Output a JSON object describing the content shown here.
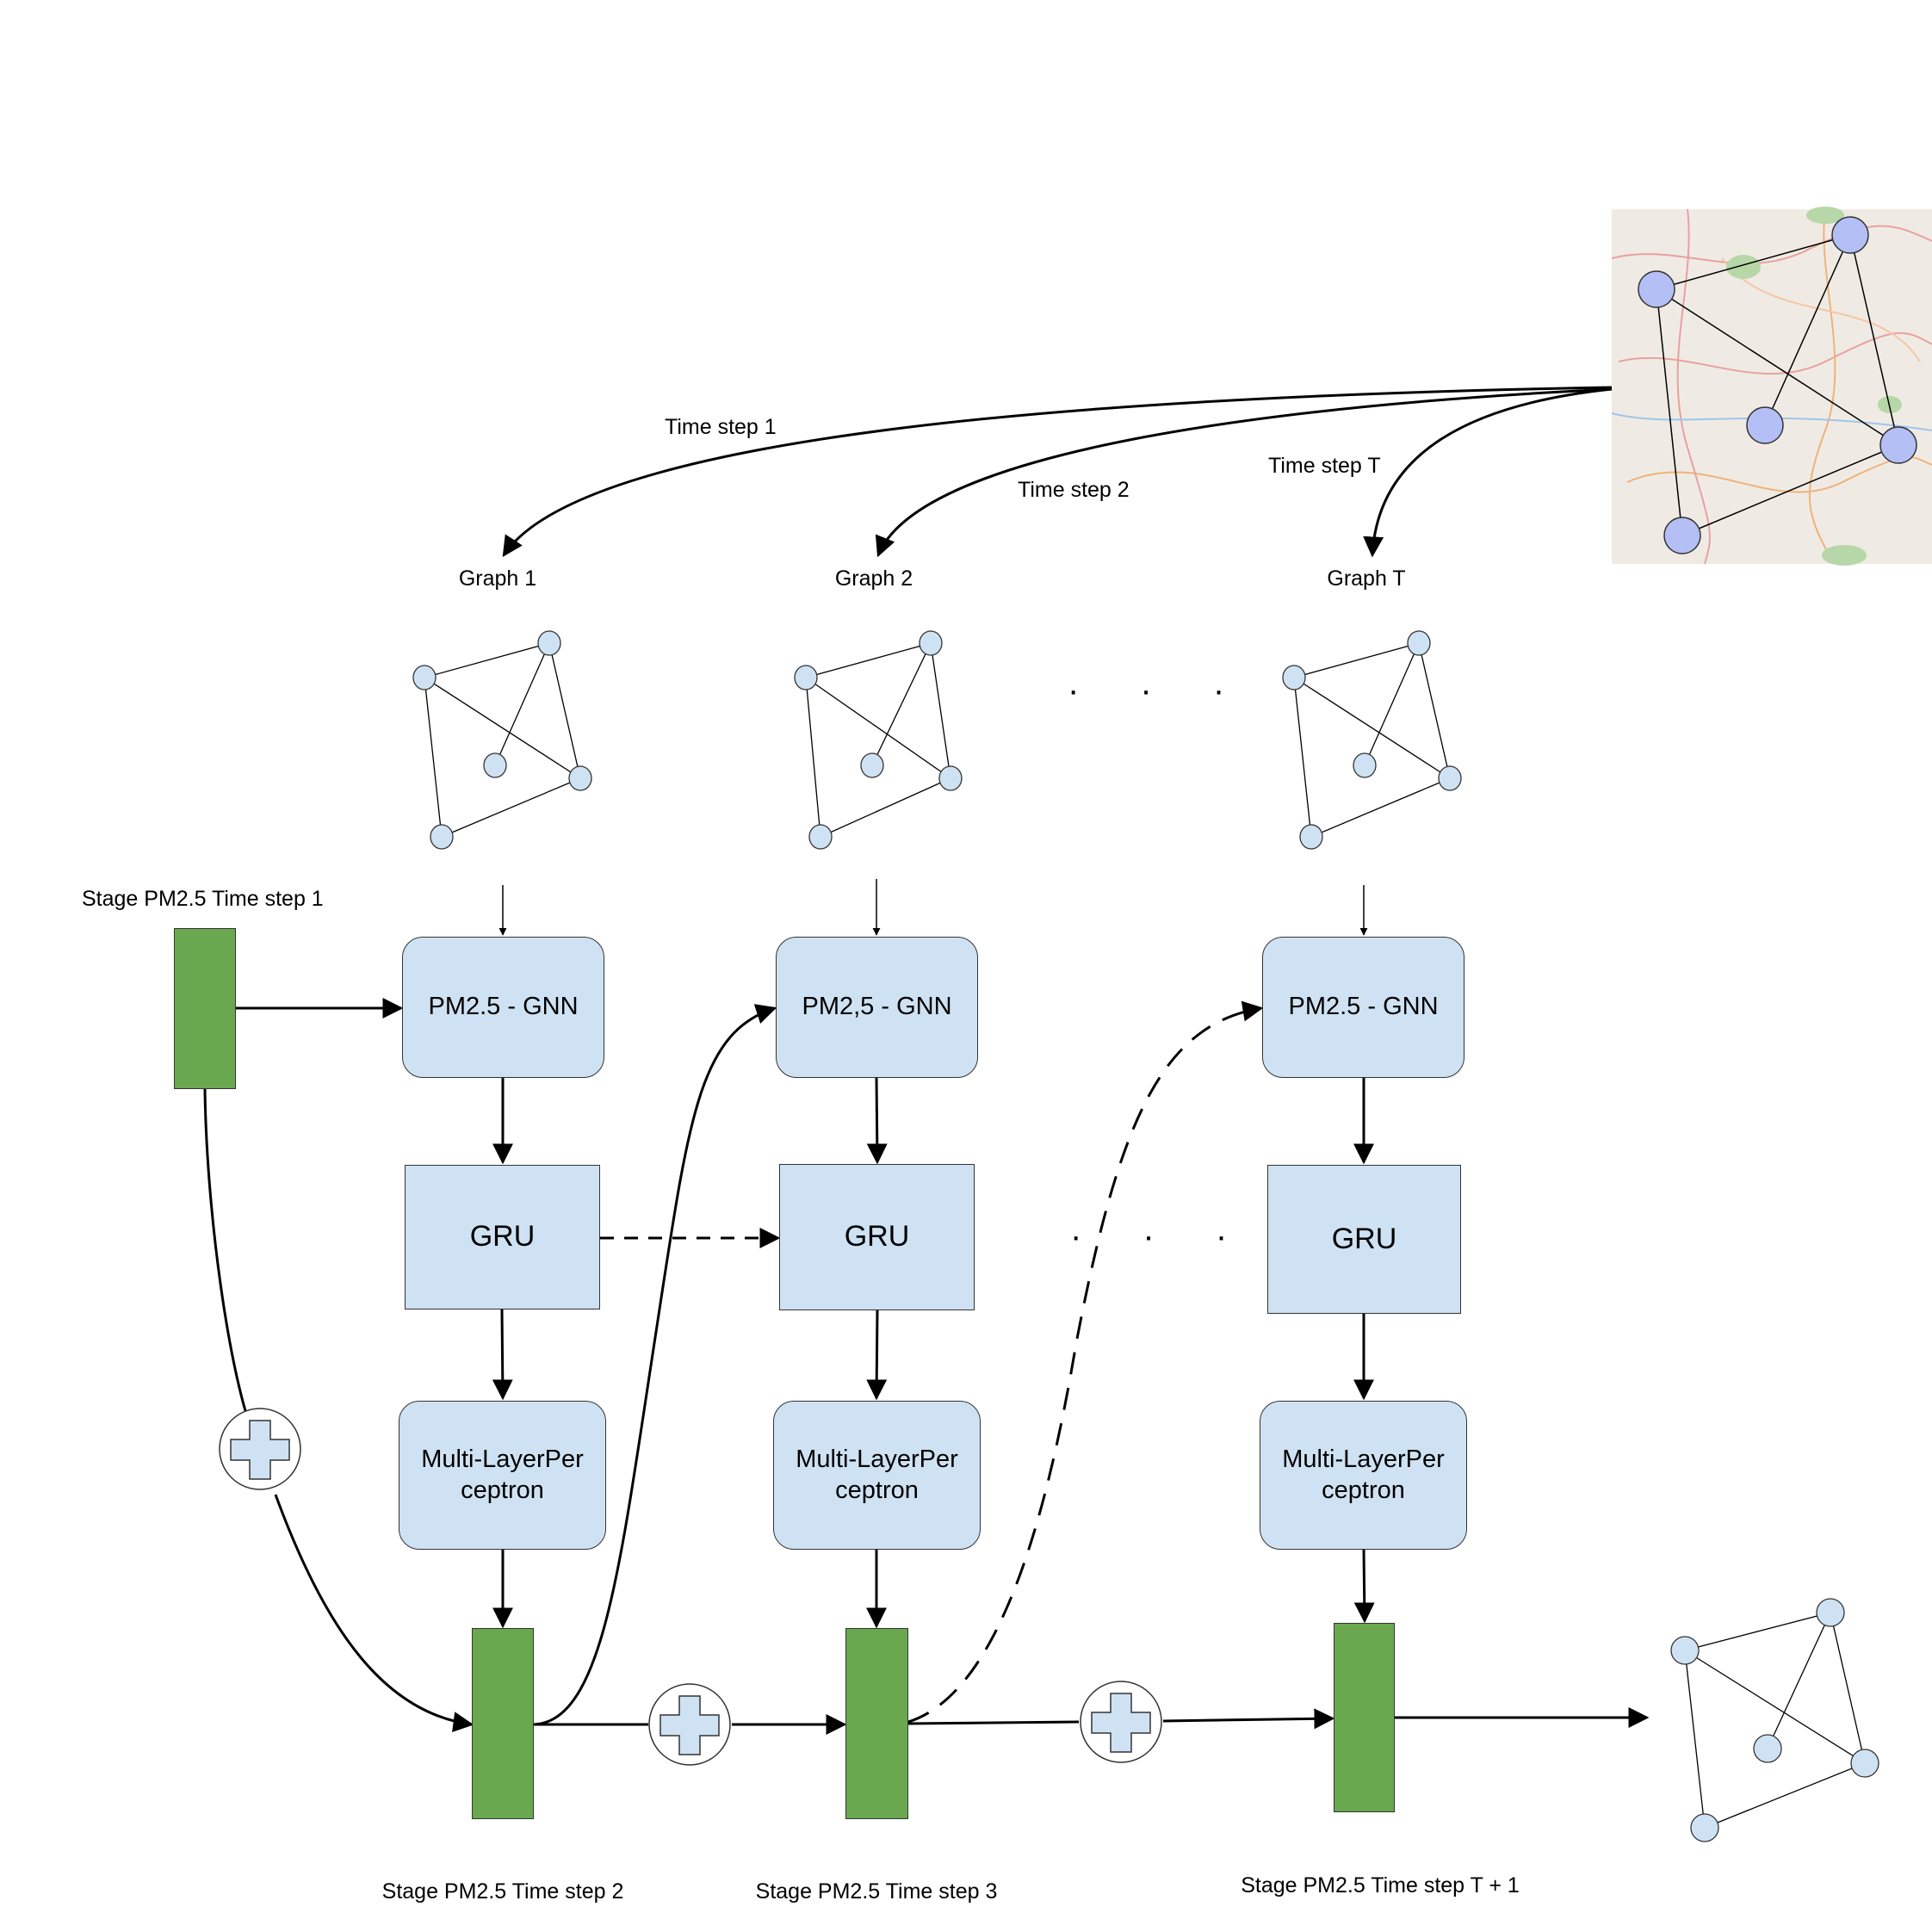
{
  "edge_labels": {
    "time_step_1": "Time step 1",
    "time_step_2": "Time step 2",
    "time_step_t": "Time step T"
  },
  "graphs": [
    {
      "label": "Graph 1"
    },
    {
      "label": "Graph 2"
    },
    {
      "label": "Graph T"
    }
  ],
  "gnn": [
    "PM2.5 - GNN",
    "PM2,5 - GNN",
    "PM2.5 - GNN"
  ],
  "gru": [
    "GRU",
    "GRU",
    "GRU"
  ],
  "mlp": [
    {
      "line1": "Multi-LayerPer",
      "line2": "ceptron"
    },
    {
      "line1": "Multi-LayerPer",
      "line2": "ceptron"
    },
    {
      "line1": "Multi-LayerPer",
      "line2": "ceptron"
    }
  ],
  "stages": {
    "input": "Stage PM2.5 Time step 1",
    "s2": "Stage PM2.5 Time step 2",
    "s3": "Stage PM2.5 Time step 3",
    "st1": "Stage PM2.5 Time step T + 1"
  },
  "ellipsis": "· · ·",
  "colors": {
    "graph_bg": "#fff2cc",
    "module_bg": "#cfe2f3",
    "stage_green": "#6aa84f",
    "map_node": "#b4bff5"
  },
  "icons": {
    "map": "road-map-thumbnail",
    "add": "plus-icon"
  }
}
